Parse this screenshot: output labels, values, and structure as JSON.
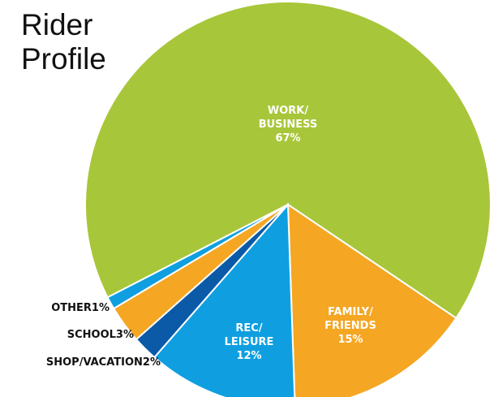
{
  "chart_data": {
    "type": "pie",
    "title": "Rider Profile",
    "categories": [
      "WORK/BUSINESS",
      "FAMILY/FRIENDS",
      "REC/LEISURE",
      "SHOP/VACATION",
      "SCHOOL",
      "OTHER"
    ],
    "values": [
      67,
      15,
      12,
      2,
      3,
      1
    ],
    "value_labels": [
      "67%",
      "15%",
      "12%",
      "2%",
      "3%",
      "1%"
    ],
    "colors": [
      "#a8c63a",
      "#f5a623",
      "#0f9fe0",
      "#0b5aa8",
      "#f5a623",
      "#0f9fe0"
    ]
  }
}
